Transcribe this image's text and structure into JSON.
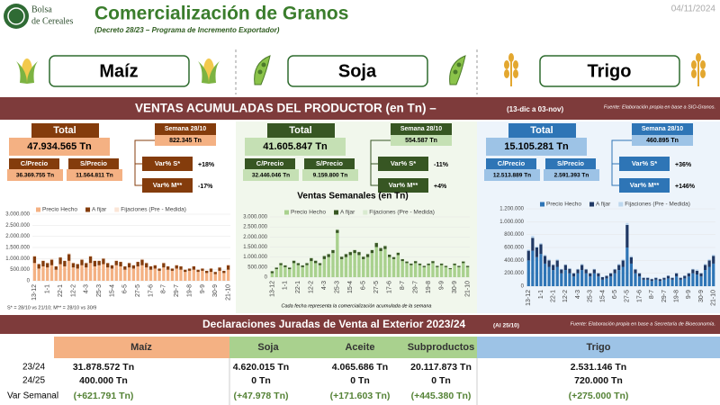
{
  "header": {
    "logo": [
      "Bolsa",
      "de Cereales"
    ],
    "title": "Comercialización de Granos",
    "subtitle": "(Decreto 28/23 – Programa de Incremento Exportador)",
    "date": "04/11/2024"
  },
  "crops": [
    "Maíz",
    "Soja",
    "Trigo"
  ],
  "banner": {
    "title": "VENTAS ACUMULADAS DEL PRODUCTOR (en Tn) –",
    "period": "(13-dic a 03-nov)",
    "source": "Fuente: Elaboración propia en base a SIO-Granos."
  },
  "panels": [
    {
      "total_label": "Total",
      "total": "47.934.565 Tn",
      "week_label": "Semana 28/10",
      "week": "822.345 Tn",
      "cp_label": "C/Precio",
      "cp": "36.369.755 Tn",
      "sp_label": "S/Precio",
      "sp": "11.564.811 Tn",
      "vs_label": "Var% S*",
      "vs": "+18%",
      "vm_label": "Var% M**",
      "vm": "-17%"
    },
    {
      "total_label": "Total",
      "total": "41.605.847 Tn",
      "week_label": "Semana 28/10",
      "week": "554.587 Tn",
      "cp_label": "C/Precio",
      "cp": "32.446.046 Tn",
      "sp_label": "S/Precio",
      "sp": "9.159.800 Tn",
      "vs_label": "Var% S*",
      "vs": "-11%",
      "vm_label": "Var% M**",
      "vm": "+4%"
    },
    {
      "total_label": "Total",
      "total": "15.105.281 Tn",
      "week_label": "Semana 28/10",
      "week": "460.895 Tn",
      "cp_label": "C/Precio",
      "cp": "12.513.889 Tn",
      "sp_label": "S/Precio",
      "sp": "2.591.393 Tn",
      "vs_label": "Var% S*",
      "vs": "+36%",
      "vm_label": "Var% M**",
      "vm": "+146%"
    }
  ],
  "chart_data": [
    {
      "type": "bar",
      "stacked": true,
      "footnote": "S* = 28/10 vs 21/10; M** = 28/10 vs 30/9",
      "categories": [
        "13-12",
        null,
        null,
        "1-1",
        null,
        null,
        "22-1",
        null,
        null,
        "12-2",
        null,
        null,
        "4-3",
        null,
        null,
        "25-3",
        null,
        null,
        "15-4",
        null,
        null,
        "6-5",
        null,
        null,
        "27-5",
        null,
        null,
        "17-6",
        null,
        null,
        "8-7",
        null,
        null,
        "29-7",
        null,
        null,
        "19-8",
        null,
        null,
        "9-9",
        null,
        null,
        "30-9",
        null,
        null,
        "21-10"
      ],
      "series": [
        {
          "name": "Precio Hecho",
          "color": "#f4b183",
          "values": [
            800000,
            550000,
            650000,
            600000,
            700000,
            500000,
            750000,
            650000,
            900000,
            600000,
            550000,
            700000,
            600000,
            800000,
            650000,
            700000,
            750000,
            600000,
            550000,
            700000,
            650000,
            500000,
            600000,
            550000,
            650000,
            700000,
            600000,
            500000,
            550000,
            450000,
            600000,
            500000,
            450000,
            550000,
            500000,
            400000,
            450000,
            500000,
            400000,
            450000,
            350000,
            400000,
            300000,
            450000,
            350000,
            500000
          ]
        },
        {
          "name": "A fijar",
          "color": "#843c0c",
          "values": [
            300000,
            200000,
            250000,
            200000,
            250000,
            150000,
            300000,
            250000,
            300000,
            200000,
            200000,
            250000,
            200000,
            300000,
            250000,
            200000,
            250000,
            200000,
            150000,
            200000,
            200000,
            150000,
            200000,
            150000,
            200000,
            250000,
            200000,
            150000,
            150000,
            100000,
            200000,
            150000,
            100000,
            150000,
            150000,
            100000,
            100000,
            150000,
            100000,
            100000,
            100000,
            150000,
            100000,
            150000,
            100000,
            200000
          ]
        },
        {
          "name": "Fijaciones (Pre - Medida)",
          "color": "#fbe5d6",
          "values": [
            50000,
            30000,
            40000,
            30000,
            50000,
            20000,
            40000,
            30000,
            50000,
            30000,
            20000,
            40000,
            30000,
            50000,
            30000,
            40000,
            30000,
            20000,
            30000,
            40000,
            30000,
            20000,
            30000,
            20000,
            30000,
            40000,
            30000,
            20000,
            30000,
            20000,
            30000,
            20000,
            20000,
            30000,
            20000,
            20000,
            20000,
            30000,
            20000,
            20000,
            20000,
            30000,
            20000,
            30000,
            20000,
            40000
          ]
        }
      ],
      "ylim": [
        0,
        3000000
      ],
      "yticks": [
        0,
        {
          "value": 500000,
          "label": "500.000"
        },
        {
          "value": 1000000,
          "label": "1.000.000"
        },
        {
          "value": 1500000,
          "label": "1.500.000"
        },
        {
          "value": 2000000,
          "label": "2.000.000"
        },
        {
          "value": 2500000,
          "label": "2.500.000"
        },
        {
          "value": 3000000,
          "label": "3.000.000"
        }
      ]
    },
    {
      "type": "bar",
      "stacked": true,
      "title": "Ventas Semanales (en Tn)",
      "caption": "Cada fecha representa la comercialización acumulada de la semana",
      "categories": [
        "13-12",
        null,
        null,
        "1-1",
        null,
        null,
        "22-1",
        null,
        null,
        "12-2",
        null,
        null,
        "4-3",
        null,
        null,
        "25-3",
        null,
        null,
        "15-4",
        null,
        null,
        "6-5",
        null,
        null,
        "27-5",
        null,
        null,
        "17-6",
        null,
        null,
        "8-7",
        null,
        null,
        "29-7",
        null,
        null,
        "19-8",
        null,
        null,
        "9-9",
        null,
        null,
        "30-9",
        null,
        null,
        "21-10"
      ],
      "series": [
        {
          "name": "Precio Hecho",
          "color": "#a9d18e",
          "values": [
            200000,
            400000,
            600000,
            500000,
            400000,
            700000,
            600000,
            500000,
            600000,
            800000,
            700000,
            600000,
            900000,
            1000000,
            1200000,
            2200000,
            900000,
            1000000,
            1100000,
            1200000,
            1100000,
            900000,
            1000000,
            1200000,
            1500000,
            1300000,
            1400000,
            1000000,
            900000,
            1100000,
            800000,
            700000,
            600000,
            700000,
            600000,
            500000,
            600000,
            700000,
            500000,
            600000,
            500000,
            400000,
            600000,
            500000,
            700000,
            500000
          ]
        },
        {
          "name": "A fijar",
          "color": "#375623",
          "values": [
            100000,
            80000,
            100000,
            90000,
            80000,
            120000,
            100000,
            90000,
            100000,
            150000,
            120000,
            100000,
            150000,
            150000,
            150000,
            150000,
            120000,
            150000,
            150000,
            150000,
            150000,
            120000,
            150000,
            150000,
            200000,
            150000,
            150000,
            120000,
            100000,
            120000,
            100000,
            80000,
            80000,
            100000,
            80000,
            60000,
            80000,
            100000,
            60000,
            80000,
            60000,
            50000,
            80000,
            60000,
            80000,
            60000
          ]
        },
        {
          "name": "Fijaciones (Pre - Medida)",
          "color": "#d9ead0",
          "values": [
            20000,
            20000,
            30000,
            20000,
            20000,
            30000,
            20000,
            20000,
            30000,
            40000,
            30000,
            20000,
            40000,
            30000,
            30000,
            50000,
            30000,
            30000,
            40000,
            40000,
            40000,
            30000,
            30000,
            40000,
            50000,
            40000,
            40000,
            30000,
            30000,
            30000,
            20000,
            20000,
            20000,
            30000,
            20000,
            20000,
            20000,
            30000,
            20000,
            20000,
            20000,
            20000,
            20000,
            20000,
            30000,
            20000
          ]
        }
      ],
      "ylim": [
        0,
        3000000
      ],
      "yticks": [
        0,
        {
          "value": 500000,
          "label": "500.000"
        },
        {
          "value": 1000000,
          "label": "1.000.000"
        },
        {
          "value": 1500000,
          "label": "1.500.000"
        },
        {
          "value": 2000000,
          "label": "2.000.000"
        },
        {
          "value": 2500000,
          "label": "2.500.000"
        },
        {
          "value": 3000000,
          "label": "3.000.000"
        }
      ]
    },
    {
      "type": "bar",
      "stacked": true,
      "categories": [
        "13-12",
        null,
        null,
        "1-1",
        null,
        null,
        "22-1",
        null,
        null,
        "12-2",
        null,
        null,
        "4-3",
        null,
        null,
        "25-3",
        null,
        null,
        "15-4",
        null,
        null,
        "6-5",
        null,
        null,
        "27-5",
        null,
        null,
        "17-6",
        null,
        null,
        "8-7",
        null,
        null,
        "29-7",
        null,
        null,
        "19-8",
        null,
        null,
        "9-9",
        null,
        null,
        "30-9",
        null,
        null,
        "21-10"
      ],
      "series": [
        {
          "name": "Precio Hecho",
          "color": "#2e75b6",
          "values": [
            400000,
            550000,
            450000,
            500000,
            350000,
            300000,
            250000,
            300000,
            200000,
            250000,
            200000,
            150000,
            200000,
            250000,
            200000,
            150000,
            200000,
            150000,
            100000,
            120000,
            150000,
            200000,
            250000,
            300000,
            600000,
            350000,
            200000,
            150000,
            100000,
            100000,
            80000,
            100000,
            80000,
            100000,
            120000,
            100000,
            150000,
            100000,
            120000,
            150000,
            200000,
            180000,
            150000,
            250000,
            300000,
            350000
          ]
        },
        {
          "name": "A fijar",
          "color": "#1f3864",
          "values": [
            150000,
            200000,
            150000,
            150000,
            120000,
            100000,
            80000,
            100000,
            60000,
            80000,
            70000,
            50000,
            60000,
            80000,
            60000,
            50000,
            60000,
            50000,
            40000,
            40000,
            50000,
            60000,
            80000,
            100000,
            350000,
            100000,
            60000,
            50000,
            30000,
            30000,
            30000,
            30000,
            30000,
            30000,
            40000,
            30000,
            50000,
            30000,
            40000,
            50000,
            60000,
            60000,
            50000,
            80000,
            100000,
            120000
          ]
        },
        {
          "name": "Fijaciones (Pre - Medida)",
          "color": "#bdd7ee",
          "values": [
            20000,
            30000,
            20000,
            20000,
            20000,
            20000,
            10000,
            20000,
            10000,
            10000,
            10000,
            10000,
            10000,
            20000,
            10000,
            10000,
            10000,
            10000,
            10000,
            10000,
            10000,
            10000,
            20000,
            20000,
            30000,
            20000,
            10000,
            10000,
            10000,
            10000,
            10000,
            10000,
            10000,
            10000,
            10000,
            10000,
            10000,
            10000,
            10000,
            10000,
            10000,
            20000,
            10000,
            20000,
            20000,
            20000
          ]
        }
      ],
      "ylim": [
        0,
        1200000
      ],
      "yticks": [
        0,
        {
          "value": 200000,
          "label": "200.000"
        },
        {
          "value": 400000,
          "label": "400.000"
        },
        {
          "value": 600000,
          "label": "600.000"
        },
        {
          "value": 800000,
          "label": "800.000"
        },
        {
          "value": 1000000,
          "label": "1.000.000"
        },
        {
          "value": 1200000,
          "label": "1.200.000"
        }
      ]
    }
  ],
  "djve": {
    "title": "Declaraciones Juradas de Venta al Exterior 2023/24",
    "period": "(Al 25/10)",
    "source": "Fuente: Elaboración propia en base a Secretaría de Bioeconomía."
  },
  "table": {
    "header": [
      "Maíz",
      "Soja",
      "Aceite",
      "Subproductos",
      "Trigo"
    ],
    "rows": [
      {
        "label": "23/24",
        "cells": [
          "31.878.572 Tn",
          "4.620.015 Tn",
          "4.065.686 Tn",
          "20.117.873 Tn",
          "2.531.146 Tn"
        ]
      },
      {
        "label": "24/25",
        "cells": [
          "400.000 Tn",
          "0 Tn",
          "0 Tn",
          "0 Tn",
          "720.000 Tn"
        ]
      },
      {
        "label": "Var Semanal",
        "cells": [
          "(+621.791 Tn)",
          "(+47.978 Tn)",
          "(+171.603 Tn)",
          "(+445.380 Tn)",
          "(+275.000 Tn)"
        ]
      }
    ]
  }
}
